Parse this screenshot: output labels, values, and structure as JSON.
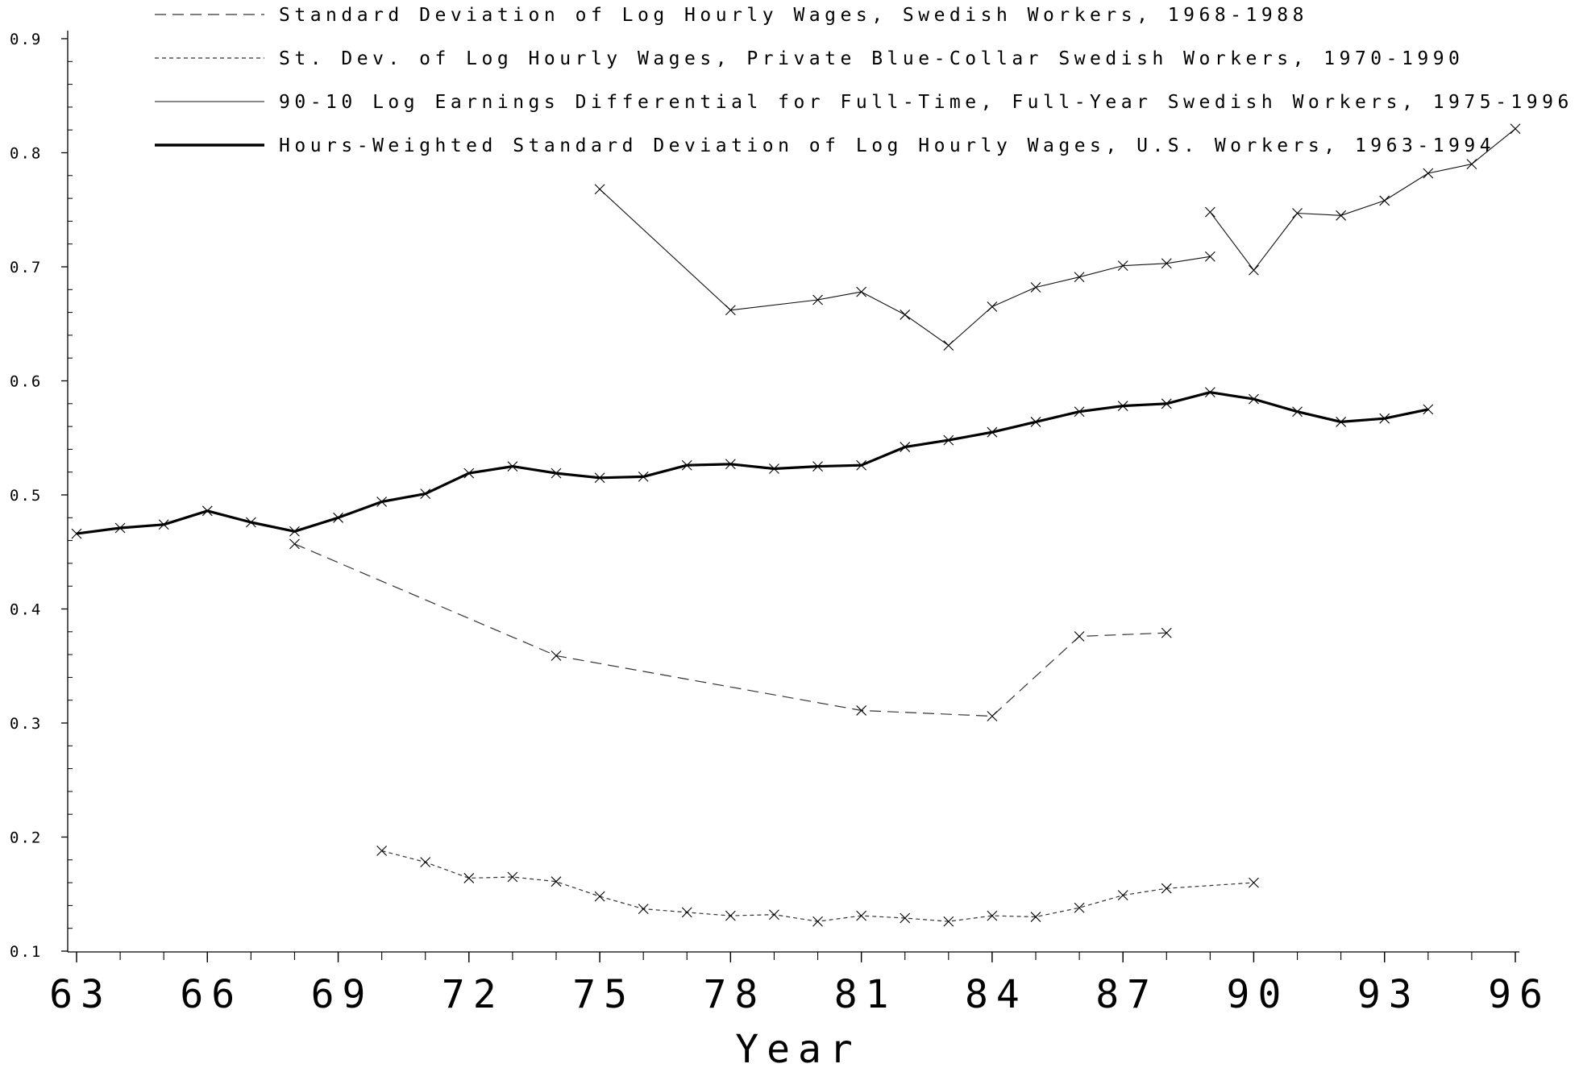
{
  "chart_data": {
    "type": "line",
    "xlabel": "Year",
    "ylabel": "",
    "title": "",
    "xlim": [
      63,
      96
    ],
    "ylim": [
      0.1,
      0.9
    ],
    "xticks": [
      63,
      66,
      69,
      72,
      75,
      78,
      81,
      84,
      87,
      90,
      93,
      96
    ],
    "yticks": [
      0.1,
      0.2,
      0.3,
      0.4,
      0.5,
      0.6,
      0.7,
      0.8,
      0.9
    ],
    "ytick_labels": [
      "0.1",
      "0.2",
      "0.3",
      "0.4",
      "0.5",
      "0.6",
      "0.7",
      "0.8",
      "0.9"
    ],
    "xtick_labels": [
      "63",
      "66",
      "69",
      "72",
      "75",
      "78",
      "81",
      "84",
      "87",
      "90",
      "93",
      "96"
    ],
    "grid": false,
    "legend_position": "top",
    "series": [
      {
        "name": "Standard Deviation of Log Hourly Wages, Swedish Workers, 1968-1988",
        "style": "dashed",
        "x": [
          68,
          74,
          81,
          84,
          86,
          88
        ],
        "y": [
          0.457,
          0.359,
          0.311,
          0.306,
          0.376,
          0.379
        ]
      },
      {
        "name": "St. Dev. of Log Hourly Wages, Private Blue-Collar Swedish Workers, 1970-1990",
        "style": "dotted",
        "x": [
          70,
          71,
          72,
          73,
          74,
          75,
          76,
          77,
          78,
          79,
          80,
          81,
          82,
          83,
          84,
          85,
          86,
          87,
          88,
          90
        ],
        "y": [
          0.188,
          0.178,
          0.164,
          0.165,
          0.161,
          0.148,
          0.137,
          0.134,
          0.131,
          0.132,
          0.126,
          0.131,
          0.129,
          0.126,
          0.131,
          0.13,
          0.138,
          0.149,
          0.155,
          0.16
        ]
      },
      {
        "name": "90-10 Log Earnings Differential for Full-Time, Full-Year Swedish Workers, 1975-1996",
        "style": "thin",
        "segments": [
          {
            "x": [
              75,
              78,
              80,
              81,
              82,
              83,
              84,
              85,
              86,
              87,
              88,
              89
            ],
            "y": [
              0.768,
              0.662,
              0.671,
              0.678,
              0.658,
              0.631,
              0.665,
              0.682,
              0.691,
              0.701,
              0.703,
              0.709
            ]
          },
          {
            "x": [
              89,
              90,
              91,
              92,
              93,
              94,
              95,
              96
            ],
            "y": [
              0.748,
              0.697,
              0.747,
              0.745,
              0.758,
              0.782,
              0.79,
              0.821
            ]
          }
        ]
      },
      {
        "name": "Hours-Weighted Standard Deviation of Log Hourly Wages, U.S. Workers, 1963-1994",
        "style": "thick",
        "x": [
          63,
          64,
          65,
          66,
          67,
          68,
          69,
          70,
          71,
          72,
          73,
          74,
          75,
          76,
          77,
          78,
          79,
          80,
          81,
          82,
          83,
          84,
          85,
          86,
          87,
          88,
          89,
          90,
          91,
          92,
          93,
          94
        ],
        "y": [
          0.466,
          0.471,
          0.474,
          0.486,
          0.476,
          0.468,
          0.48,
          0.494,
          0.501,
          0.519,
          0.525,
          0.519,
          0.515,
          0.516,
          0.526,
          0.527,
          0.523,
          0.525,
          0.526,
          0.542,
          0.548,
          0.555,
          0.564,
          0.573,
          0.578,
          0.58,
          0.59,
          0.584,
          0.573,
          0.564,
          0.567,
          0.575
        ]
      }
    ]
  }
}
